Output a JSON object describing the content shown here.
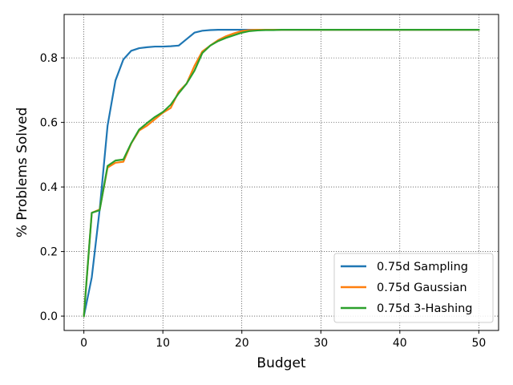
{
  "chart_data": {
    "type": "line",
    "title": "",
    "xlabel": "Budget",
    "ylabel": "% Problems Solved",
    "xlim": [
      -2.5,
      52.5
    ],
    "ylim": [
      -0.0445,
      0.9345
    ],
    "xticks": [
      0,
      10,
      20,
      30,
      40,
      50
    ],
    "xtick_labels": [
      "0",
      "10",
      "20",
      "30",
      "40",
      "50"
    ],
    "yticks": [
      0.0,
      0.2,
      0.4,
      0.6,
      0.8
    ],
    "ytick_labels": [
      "0.0",
      "0.2",
      "0.4",
      "0.6",
      "0.8"
    ],
    "grid": true,
    "legend_position": "lower-right",
    "series": [
      {
        "name": "0.75d Sampling",
        "color": "#1f77b4",
        "x": [
          0,
          1,
          2,
          3,
          4,
          5,
          6,
          7,
          8,
          9,
          10,
          11,
          12,
          13,
          14,
          15,
          16,
          17,
          18,
          19,
          20,
          21,
          22,
          23,
          24,
          25,
          30,
          35,
          40,
          45,
          50
        ],
        "y": [
          0.0,
          0.12,
          0.33,
          0.59,
          0.73,
          0.795,
          0.822,
          0.83,
          0.833,
          0.835,
          0.835,
          0.836,
          0.838,
          0.858,
          0.878,
          0.884,
          0.886,
          0.887,
          0.887,
          0.887,
          0.887,
          0.887,
          0.887,
          0.887,
          0.887,
          0.887,
          0.887,
          0.887,
          0.887,
          0.887,
          0.887
        ]
      },
      {
        "name": "0.75d Gaussian",
        "color": "#ff7f0e",
        "x": [
          0,
          1,
          2,
          3,
          4,
          5,
          6,
          7,
          8,
          9,
          10,
          11,
          12,
          13,
          14,
          15,
          16,
          17,
          18,
          19,
          20,
          21,
          22,
          23,
          24,
          25,
          30,
          35,
          40,
          45,
          50
        ],
        "y": [
          0.0,
          0.32,
          0.33,
          0.46,
          0.475,
          0.478,
          0.535,
          0.575,
          0.59,
          0.61,
          0.63,
          0.645,
          0.695,
          0.72,
          0.775,
          0.82,
          0.838,
          0.855,
          0.867,
          0.876,
          0.883,
          0.886,
          0.887,
          0.887,
          0.887,
          0.887,
          0.887,
          0.887,
          0.887,
          0.887,
          0.887
        ]
      },
      {
        "name": "0.75d 3-Hashing",
        "color": "#2ca02c",
        "x": [
          0,
          1,
          2,
          3,
          4,
          5,
          6,
          7,
          8,
          9,
          10,
          11,
          12,
          13,
          14,
          15,
          16,
          17,
          18,
          19,
          20,
          21,
          22,
          23,
          24,
          25,
          30,
          35,
          40,
          45,
          50
        ],
        "y": [
          0.0,
          0.32,
          0.328,
          0.465,
          0.482,
          0.485,
          0.536,
          0.578,
          0.598,
          0.617,
          0.632,
          0.655,
          0.69,
          0.72,
          0.76,
          0.815,
          0.838,
          0.852,
          0.862,
          0.87,
          0.878,
          0.883,
          0.885,
          0.886,
          0.886,
          0.887,
          0.887,
          0.887,
          0.887,
          0.887,
          0.887
        ]
      }
    ]
  }
}
